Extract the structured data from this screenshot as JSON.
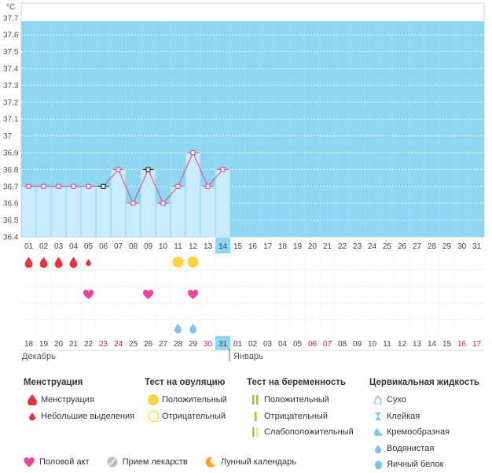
{
  "chart_data": {
    "type": "line",
    "unit_label": "°C",
    "y_ticks": [
      "37.7",
      "37.6",
      "37.5",
      "37.4",
      "37.3",
      "37.2",
      "37.1",
      "37",
      "36.9",
      "36.8",
      "36.7",
      "36.6",
      "36.5",
      "36.4"
    ],
    "ylim": [
      36.4,
      37.7
    ],
    "cycle_day_labels": [
      "01",
      "02",
      "03",
      "04",
      "05",
      "06",
      "07",
      "08",
      "09",
      "10",
      "11",
      "12",
      "13",
      "14",
      "15",
      "16",
      "17",
      "18",
      "19",
      "20",
      "21",
      "22",
      "23",
      "24",
      "25",
      "26",
      "27",
      "28",
      "29",
      "30",
      "31"
    ],
    "current_day_index": 13,
    "temperatures": [
      36.7,
      36.7,
      36.7,
      36.7,
      36.7,
      36.7,
      36.8,
      36.6,
      36.8,
      36.6,
      36.7,
      36.9,
      36.7,
      36.8
    ],
    "marker_types": [
      "pink",
      "pink",
      "pink",
      "pink",
      "pink",
      "black",
      "pink",
      "pink",
      "black",
      "pink",
      "pink",
      "pink",
      "pink",
      "pink"
    ],
    "calendar_dates": [
      "18",
      "19",
      "20",
      "21",
      "22",
      "23",
      "24",
      "25",
      "26",
      "27",
      "28",
      "29",
      "30",
      "31",
      "01",
      "02",
      "03",
      "04",
      "05",
      "06",
      "07",
      "08",
      "09",
      "10",
      "11",
      "12",
      "13",
      "14",
      "15",
      "16",
      "17"
    ],
    "red_dates": [
      5,
      6,
      12,
      19,
      20,
      29,
      30
    ],
    "month_labels": [
      {
        "col": 0,
        "text": "Декабрь"
      },
      {
        "col": 14,
        "text": "Январь"
      }
    ],
    "colors": {
      "sky": "#8dd7f2",
      "bar": "#c9ecfc",
      "bar_border": "#aadcf4",
      "line": "#e0407e",
      "blood": "#e8323f",
      "ovulation": "#fbd33e",
      "heart": "#f0449c",
      "fluid": "#7ec3ea",
      "highlight": "#8dd7f2"
    }
  },
  "symptoms": {
    "menstruation": {
      "big": [
        0,
        1,
        2,
        3
      ],
      "small": [
        4
      ]
    },
    "ovulation_positive": [
      10,
      11
    ],
    "intercourse": [
      4,
      8,
      11
    ],
    "fluid_watery": [
      10,
      11
    ]
  },
  "legend": {
    "menstruation": {
      "title": "Менструация",
      "items": [
        "Менструация",
        "Небольшие выделения"
      ]
    },
    "ovulation": {
      "title": "Тест на овуляцию",
      "items": [
        "Положительный",
        "Отрицательный"
      ]
    },
    "pregnancy": {
      "title": "Тест на беременность",
      "items": [
        "Положительный",
        "Отрицательный",
        "Слабоположительный"
      ]
    },
    "cervical": {
      "title": "Цервикальная жидкость",
      "items": [
        "Сухо",
        "Клейкая",
        "Кремообразная",
        "Водянистая",
        "Яичный белок"
      ]
    },
    "bottom": [
      "Половой акт",
      "Прием лекарств",
      "Лунный календарь"
    ]
  }
}
